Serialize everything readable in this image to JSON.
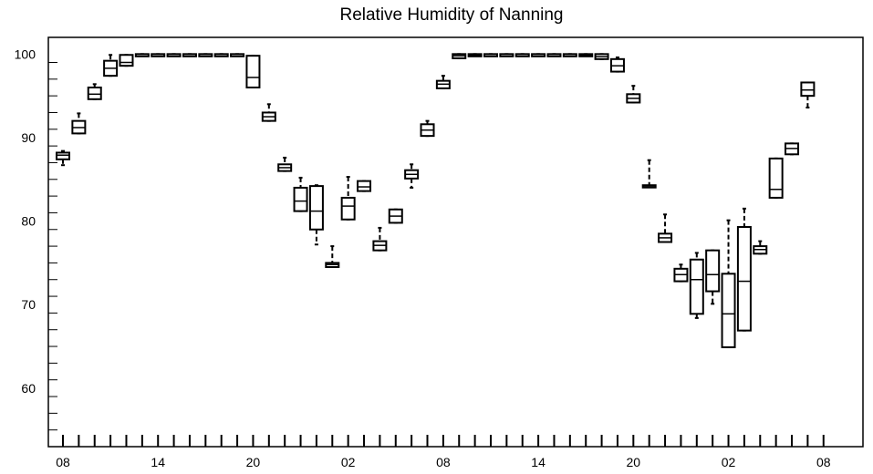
{
  "chart_data": {
    "type": "box",
    "title": "Relative Humidity of Nanning",
    "xlabel": "",
    "ylabel": "",
    "ylim": [
      53,
      102
    ],
    "y_ticks": [
      60,
      70,
      80,
      90,
      100
    ],
    "x_tick_labels": [
      "08",
      "14",
      "20",
      "02",
      "08",
      "14",
      "20",
      "02",
      "08"
    ],
    "x_tick_hours": [
      0,
      6,
      12,
      18,
      24,
      30,
      36,
      42,
      48
    ],
    "grid": false,
    "legend": "none",
    "colors": {
      "stroke": "#000000",
      "background": "#ffffff"
    },
    "boxes": [
      {
        "hour": 0,
        "whisker_low": 86.7,
        "q1": 87.4,
        "median": 87.9,
        "q3": 88.2,
        "whisker_high": 88.4
      },
      {
        "hour": 1,
        "whisker_low": 90.5,
        "q1": 90.5,
        "median": 91.2,
        "q3": 92.0,
        "whisker_high": 92.9
      },
      {
        "hour": 2,
        "whisker_low": 94.6,
        "q1": 94.6,
        "median": 95.2,
        "q3": 96.0,
        "whisker_high": 96.4
      },
      {
        "hour": 3,
        "whisker_low": 97.4,
        "q1": 97.4,
        "median": 98.3,
        "q3": 99.2,
        "whisker_high": 99.9
      },
      {
        "hour": 4,
        "whisker_low": 98.6,
        "q1": 98.6,
        "median": 99.0,
        "q3": 99.9,
        "whisker_high": 99.9
      },
      {
        "hour": 5,
        "whisker_low": 99.9,
        "q1": 99.9,
        "median": 100,
        "q3": 100,
        "whisker_high": 100
      },
      {
        "hour": 6,
        "whisker_low": 99.9,
        "q1": 99.9,
        "median": 100,
        "q3": 100,
        "whisker_high": 100
      },
      {
        "hour": 7,
        "whisker_low": 99.9,
        "q1": 99.9,
        "median": 100,
        "q3": 100,
        "whisker_high": 100
      },
      {
        "hour": 8,
        "whisker_low": 99.9,
        "q1": 99.9,
        "median": 100,
        "q3": 100,
        "whisker_high": 100
      },
      {
        "hour": 9,
        "whisker_low": 99.9,
        "q1": 99.9,
        "median": 100,
        "q3": 100,
        "whisker_high": 100
      },
      {
        "hour": 10,
        "whisker_low": 99.9,
        "q1": 99.9,
        "median": 100,
        "q3": 100,
        "whisker_high": 100
      },
      {
        "hour": 11,
        "whisker_low": 99.9,
        "q1": 99.9,
        "median": 100,
        "q3": 100,
        "whisker_high": 100
      },
      {
        "hour": 12,
        "whisker_low": 96.0,
        "q1": 96.0,
        "median": 97.2,
        "q3": 99.8,
        "whisker_high": 99.8
      },
      {
        "hour": 13,
        "whisker_low": 92.0,
        "q1": 92.0,
        "median": 92.5,
        "q3": 93.0,
        "whisker_high": 94.0
      },
      {
        "hour": 14,
        "whisker_low": 86.0,
        "q1": 86.0,
        "median": 86.4,
        "q3": 86.8,
        "whisker_high": 87.6
      },
      {
        "hour": 15,
        "whisker_low": 81.2,
        "q1": 81.2,
        "median": 82.4,
        "q3": 84.0,
        "whisker_high": 85.2
      },
      {
        "hour": 16,
        "whisker_low": 77.2,
        "q1": 79.0,
        "median": 81.2,
        "q3": 84.2,
        "whisker_high": 84.3
      },
      {
        "hour": 17,
        "whisker_low": 74.5,
        "q1": 74.5,
        "median": 74.8,
        "q3": 75.0,
        "whisker_high": 77.0
      },
      {
        "hour": 18,
        "whisker_low": 80.2,
        "q1": 80.2,
        "median": 81.8,
        "q3": 82.8,
        "whisker_high": 85.3
      },
      {
        "hour": 19,
        "whisker_low": 83.6,
        "q1": 83.6,
        "median": 84.1,
        "q3": 84.8,
        "whisker_high": 84.8
      },
      {
        "hour": 20,
        "whisker_low": 76.5,
        "q1": 76.5,
        "median": 77.1,
        "q3": 77.6,
        "whisker_high": 79.2
      },
      {
        "hour": 21,
        "whisker_low": 79.8,
        "q1": 79.8,
        "median": 80.6,
        "q3": 81.4,
        "whisker_high": 81.4
      },
      {
        "hour": 22,
        "whisker_low": 84.0,
        "q1": 85.1,
        "median": 85.6,
        "q3": 86.1,
        "whisker_high": 86.8
      },
      {
        "hour": 23,
        "whisker_low": 90.2,
        "q1": 90.2,
        "median": 90.9,
        "q3": 91.6,
        "whisker_high": 92.0
      },
      {
        "hour": 24,
        "whisker_low": 95.9,
        "q1": 95.9,
        "median": 96.4,
        "q3": 96.8,
        "whisker_high": 97.4
      },
      {
        "hour": 25,
        "whisker_low": 99.5,
        "q1": 99.5,
        "median": 99.8,
        "q3": 100,
        "whisker_high": 100
      },
      {
        "hour": 26,
        "whisker_low": 99.8,
        "q1": 99.8,
        "median": 99.9,
        "q3": 100,
        "whisker_high": 100
      },
      {
        "hour": 27,
        "whisker_low": 99.9,
        "q1": 99.9,
        "median": 100,
        "q3": 100,
        "whisker_high": 100
      },
      {
        "hour": 28,
        "whisker_low": 99.9,
        "q1": 99.9,
        "median": 100,
        "q3": 100,
        "whisker_high": 100
      },
      {
        "hour": 29,
        "whisker_low": 99.9,
        "q1": 99.9,
        "median": 100,
        "q3": 100,
        "whisker_high": 100
      },
      {
        "hour": 30,
        "whisker_low": 99.9,
        "q1": 99.9,
        "median": 100,
        "q3": 100,
        "whisker_high": 100
      },
      {
        "hour": 31,
        "whisker_low": 99.9,
        "q1": 99.9,
        "median": 100,
        "q3": 100,
        "whisker_high": 100
      },
      {
        "hour": 32,
        "whisker_low": 99.9,
        "q1": 99.9,
        "median": 100,
        "q3": 100,
        "whisker_high": 100
      },
      {
        "hour": 33,
        "whisker_low": 99.8,
        "q1": 99.8,
        "median": 99.9,
        "q3": 100,
        "whisker_high": 100
      },
      {
        "hour": 34,
        "whisker_low": 99.4,
        "q1": 99.4,
        "median": 99.7,
        "q3": 100,
        "whisker_high": 100
      },
      {
        "hour": 35,
        "whisker_low": 97.9,
        "q1": 97.9,
        "median": 98.6,
        "q3": 99.4,
        "whisker_high": 99.6
      },
      {
        "hour": 36,
        "whisker_low": 94.2,
        "q1": 94.2,
        "median": 94.7,
        "q3": 95.2,
        "whisker_high": 96.2
      },
      {
        "hour": 37,
        "whisker_low": 84.1,
        "q1": 84.1,
        "median": 84.2,
        "q3": 84.3,
        "whisker_high": 87.3
      },
      {
        "hour": 38,
        "whisker_low": 77.5,
        "q1": 77.5,
        "median": 78.0,
        "q3": 78.5,
        "whisker_high": 80.8
      },
      {
        "hour": 39,
        "whisker_low": 72.8,
        "q1": 72.8,
        "median": 73.6,
        "q3": 74.3,
        "whisker_high": 74.8
      },
      {
        "hour": 40,
        "whisker_low": 68.4,
        "q1": 68.9,
        "median": 73.0,
        "q3": 75.4,
        "whisker_high": 76.2
      },
      {
        "hour": 41,
        "whisker_low": 70.1,
        "q1": 71.6,
        "median": 73.6,
        "q3": 76.5,
        "whisker_high": 76.5
      },
      {
        "hour": 42,
        "whisker_low": 64.9,
        "q1": 64.9,
        "median": 68.9,
        "q3": 73.7,
        "whisker_high": 80.1
      },
      {
        "hour": 43,
        "whisker_low": 66.9,
        "q1": 66.9,
        "median": 72.8,
        "q3": 79.3,
        "whisker_high": 81.5
      },
      {
        "hour": 44,
        "whisker_low": 76.1,
        "q1": 76.1,
        "median": 76.6,
        "q3": 77.0,
        "whisker_high": 77.6
      },
      {
        "hour": 45,
        "whisker_low": 82.8,
        "q1": 82.8,
        "median": 83.8,
        "q3": 87.5,
        "whisker_high": 87.5
      },
      {
        "hour": 46,
        "whisker_low": 88.0,
        "q1": 88.0,
        "median": 88.7,
        "q3": 89.3,
        "whisker_high": 89.3
      },
      {
        "hour": 47,
        "whisker_low": 93.6,
        "q1": 95.0,
        "median": 95.7,
        "q3": 96.6,
        "whisker_high": 96.6
      }
    ]
  }
}
